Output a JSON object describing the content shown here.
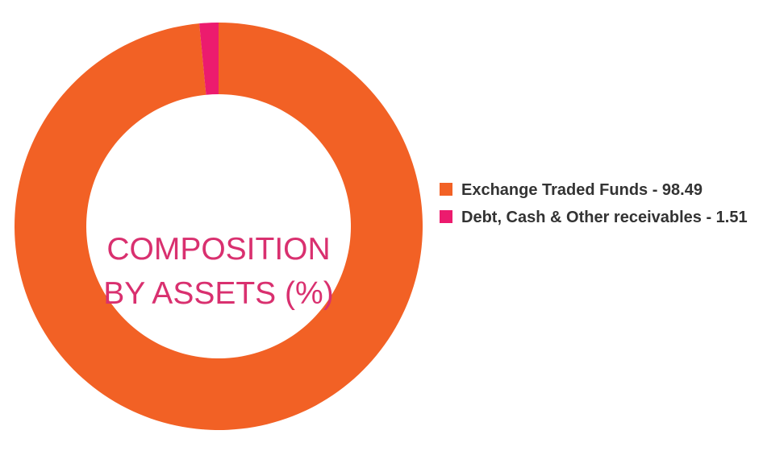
{
  "chart_data": {
    "type": "pie",
    "title": "COMPOSITION BY ASSETS (%)",
    "categories": [
      "Exchange Traded Funds - 98.49",
      "Debt, Cash & Other receivables - 1.51"
    ],
    "values": [
      98.49,
      1.51
    ],
    "colors": [
      "#f26125",
      "#ec1b6e"
    ],
    "donut": true,
    "legend": "right"
  }
}
